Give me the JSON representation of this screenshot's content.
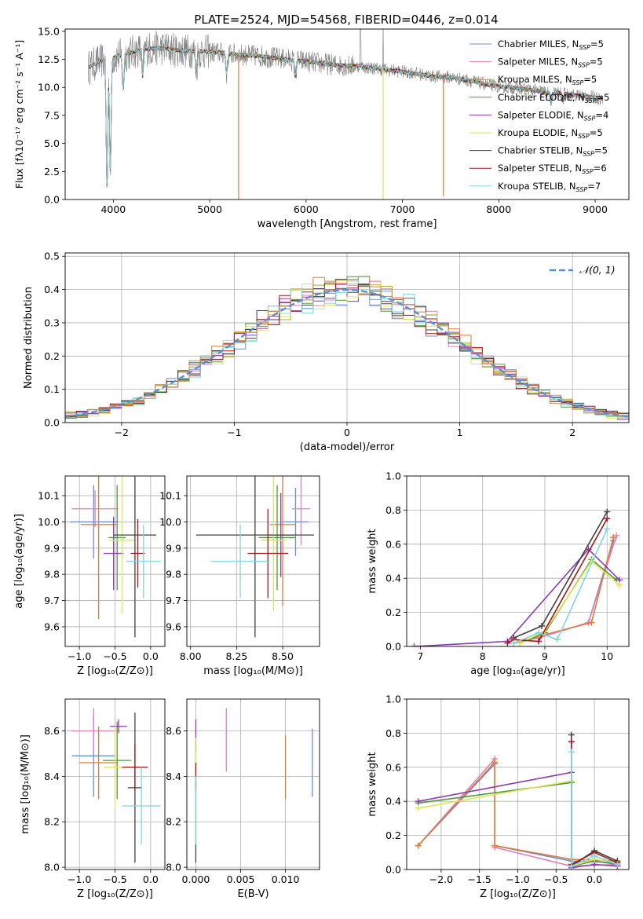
{
  "figure": {
    "title": "PLATE=2524, MJD=54568, FIBERID=0446, z=0.014"
  },
  "colors": {
    "Chabrier MILES": "#6b8fd6",
    "Salpeter MILES": "#e07fb8",
    "Kroupa MILES": "#b8a32e",
    "Chabrier ELODIE": "#4e9a3e",
    "Salpeter ELODIE": "#8e3ab0",
    "Kroupa ELODIE": "#e2e35a",
    "Chabrier STELIB": "#404040",
    "Salpeter STELIB": "#a01818",
    "Kroupa STELIB": "#7fd8dc",
    "orange": "#e07b3a",
    "data": "#808080",
    "normal": "#5b8fd0"
  },
  "chart_data": [
    {
      "id": "spectrum",
      "type": "line",
      "xlabel": "wavelength [Angstrom, rest frame]",
      "ylabel": "Flux [fλ10⁻¹⁷ erg cm⁻² s⁻¹ A⁻¹]",
      "xlim": [
        3500,
        9350
      ],
      "ylim": [
        0,
        15.2
      ],
      "xticks": [
        4000,
        5000,
        6000,
        7000,
        8000,
        9000
      ],
      "yticks": [
        0.0,
        2.5,
        5.0,
        7.5,
        10.0,
        12.5,
        15.0
      ],
      "legend": "top-right",
      "series": [
        {
          "name": "Chabrier MILES, N_SSP=5",
          "label_main": "Chabrier MILES, N",
          "label_sub": "SSP",
          "label_tail": "=5",
          "color": "#6b8fd6"
        },
        {
          "name": "Salpeter MILES, N_SSP=5",
          "label_main": "Salpeter MILES, N",
          "label_sub": "SSP",
          "label_tail": "=5",
          "color": "#e07fb8"
        },
        {
          "name": "Kroupa MILES, N_SSP=5",
          "label_main": "Kroupa MILES, N",
          "label_sub": "SSP",
          "label_tail": "=5",
          "color": "#b8a32e"
        },
        {
          "name": "Chabrier ELODIE, N_SSP=5",
          "label_main": "Chabrier ELODIE, N",
          "label_sub": "SSP",
          "label_tail": "=5",
          "color": "#4e9a3e"
        },
        {
          "name": "Salpeter ELODIE, N_SSP=4",
          "label_main": "Salpeter ELODIE, N",
          "label_sub": "SSP",
          "label_tail": "=4",
          "color": "#8e3ab0"
        },
        {
          "name": "Kroupa ELODIE, N_SSP=5",
          "label_main": "Kroupa ELODIE, N",
          "label_sub": "SSP",
          "label_tail": "=5",
          "color": "#e2e35a"
        },
        {
          "name": "Chabrier STELIB, N_SSP=5",
          "label_main": "Chabrier STELIB, N",
          "label_sub": "SSP",
          "label_tail": "=5",
          "color": "#404040"
        },
        {
          "name": "Salpeter STELIB, N_SSP=6",
          "label_main": "Salpeter STELIB, N",
          "label_sub": "SSP",
          "label_tail": "=6",
          "color": "#a01818"
        },
        {
          "name": "Kroupa STELIB, N_SSP=7",
          "label_main": "Kroupa STELIB, N",
          "label_sub": "SSP",
          "label_tail": "=7",
          "color": "#7fd8dc"
        }
      ],
      "continuum": [
        [
          3750,
          11.8
        ],
        [
          3850,
          12.3
        ],
        [
          3950,
          12.5
        ],
        [
          4050,
          12.8
        ],
        [
          4150,
          13.0
        ],
        [
          4300,
          13.4
        ],
        [
          4500,
          13.5
        ],
        [
          4700,
          13.3
        ],
        [
          4900,
          13.2
        ],
        [
          5100,
          13.1
        ],
        [
          5300,
          12.9
        ],
        [
          5500,
          12.8
        ],
        [
          5700,
          12.6
        ],
        [
          5900,
          12.4
        ],
        [
          6100,
          12.2
        ],
        [
          6300,
          12.0
        ],
        [
          6500,
          11.9
        ],
        [
          6700,
          11.7
        ],
        [
          6900,
          11.5
        ],
        [
          7100,
          11.3
        ],
        [
          7300,
          11.0
        ],
        [
          7500,
          10.9
        ],
        [
          7700,
          10.6
        ],
        [
          7900,
          10.2
        ],
        [
          8100,
          10.0
        ],
        [
          8300,
          9.8
        ],
        [
          8500,
          9.6
        ],
        [
          8700,
          9.4
        ],
        [
          8900,
          9.2
        ],
        [
          9080,
          9.0
        ]
      ],
      "absorption": [
        [
          3934,
          0.9
        ],
        [
          3969,
          2.6
        ],
        [
          4102,
          9.8
        ],
        [
          4304,
          11.0
        ],
        [
          4861,
          11.5
        ],
        [
          5175,
          11.2
        ],
        [
          5890,
          11.0
        ],
        [
          6563,
          12.0
        ],
        [
          8498,
          9.4
        ],
        [
          8542,
          8.5
        ],
        [
          8662,
          8.8
        ]
      ],
      "model_drops": [
        [
          5300,
          0.0,
          "#e07b3a"
        ],
        [
          6800,
          0.0,
          "#e2e35a"
        ],
        [
          7425,
          0.3,
          "#e07b3a"
        ]
      ]
    },
    {
      "id": "residuals",
      "type": "histogram",
      "xlabel": "(data-model)/error",
      "ylabel": "Normed distribution",
      "xlim": [
        -2.5,
        2.5
      ],
      "ylim": [
        0,
        0.51
      ],
      "xticks": [
        -2,
        -1,
        0,
        1,
        2
      ],
      "yticks": [
        0.0,
        0.1,
        0.2,
        0.3,
        0.4,
        0.5
      ],
      "legend": "top-right",
      "legend_label": "𝒩(0, 1)",
      "bin_width": 0.1
    },
    {
      "id": "age_vs_Z",
      "type": "errorbar",
      "xlabel": "Z [log₁₀(Z/Z⊙)]",
      "ylabel": "age  [log₁₀(age/yr)]",
      "xlim": [
        -1.2,
        0.2
      ],
      "ylim": [
        9.525,
        10.175
      ],
      "xticks": [
        -1.0,
        -0.5,
        0.0
      ],
      "yticks": [
        9.6,
        9.7,
        9.8,
        9.9,
        10.0,
        10.1
      ],
      "points": [
        {
          "x": -0.8,
          "y": 10.0,
          "xerr": 0.33,
          "yerr": 0.14,
          "color": "#6b8fd6"
        },
        {
          "x": -0.78,
          "y": 10.05,
          "xerr": 0.33,
          "yerr": 0.07,
          "color": "#e07fb8"
        },
        {
          "x": -0.73,
          "y": 9.99,
          "xerr": 0.25,
          "yerr": 0.36,
          "color": "#e07b3a"
        },
        {
          "x": -0.47,
          "y": 9.94,
          "xerr": 0.12,
          "yerr": 0.2,
          "color": "#4e9a3e"
        },
        {
          "x": -0.52,
          "y": 9.88,
          "xerr": 0.14,
          "yerr": 0.14,
          "color": "#8e3ab0"
        },
        {
          "x": -0.4,
          "y": 9.93,
          "xerr": 0.18,
          "yerr": 0.28,
          "color": "#e2e35a"
        },
        {
          "x": -0.22,
          "y": 9.95,
          "xerr": 0.3,
          "yerr": 0.39,
          "color": "#404040"
        },
        {
          "x": -0.18,
          "y": 9.88,
          "xerr": 0.1,
          "yerr": 0.13,
          "color": "#a01818"
        },
        {
          "x": -0.1,
          "y": 9.85,
          "xerr": 0.24,
          "yerr": 0.14,
          "color": "#7fd8dc"
        }
      ]
    },
    {
      "id": "age_vs_mass",
      "type": "errorbar",
      "xlabel": "mass [log₁₀(M/M⊙)]",
      "ylabel": "",
      "xlim": [
        7.98,
        8.7
      ],
      "ylim": [
        9.525,
        10.175
      ],
      "xticks": [
        8.0,
        8.25,
        8.5
      ],
      "yticks": [
        9.6,
        9.7,
        9.8,
        9.9,
        10.0,
        10.1
      ],
      "points": [
        {
          "x": 8.57,
          "y": 10.0,
          "xerr": 0.07,
          "yerr": 0.13,
          "color": "#6b8fd6"
        },
        {
          "x": 8.6,
          "y": 10.05,
          "xerr": 0.05,
          "yerr": 0.14,
          "color": "#e07fb8"
        },
        {
          "x": 8.5,
          "y": 9.99,
          "xerr": 0.07,
          "yerr": 0.31,
          "color": "#e07b3a"
        },
        {
          "x": 8.47,
          "y": 9.94,
          "xerr": 0.1,
          "yerr": 0.2,
          "color": "#4e9a3e"
        },
        {
          "x": 8.49,
          "y": 9.95,
          "xerr": 0.07,
          "yerr": 0.16,
          "color": "#8e3ab0"
        },
        {
          "x": 8.45,
          "y": 9.93,
          "xerr": 0.07,
          "yerr": 0.27,
          "color": "#e2e35a"
        },
        {
          "x": 8.35,
          "y": 9.95,
          "xerr": 0.32,
          "yerr": 0.39,
          "color": "#404040"
        },
        {
          "x": 8.42,
          "y": 9.88,
          "xerr": 0.11,
          "yerr": 0.17,
          "color": "#a01818"
        },
        {
          "x": 8.27,
          "y": 9.85,
          "xerr": 0.16,
          "yerr": 0.14,
          "color": "#7fd8dc"
        }
      ]
    },
    {
      "id": "weight_vs_age",
      "type": "line",
      "xlabel": "age  [log₁₀(age/yr)]",
      "ylabel": "mass weight",
      "xlim": [
        6.78,
        10.35
      ],
      "ylim": [
        0,
        1.0
      ],
      "xticks": [
        7,
        8,
        9,
        10
      ],
      "yticks": [
        0.0,
        0.2,
        0.4,
        0.6,
        0.8,
        1.0
      ],
      "series": [
        {
          "color": "#6b8fd6",
          "points": [
            [
              8.5,
              0.02
            ],
            [
              8.9,
              0.05
            ],
            [
              9.7,
              0.14
            ],
            [
              10.1,
              0.62
            ]
          ]
        },
        {
          "color": "#e07fb8",
          "points": [
            [
              8.5,
              0.02
            ],
            [
              8.9,
              0.05
            ],
            [
              9.7,
              0.14
            ],
            [
              10.15,
              0.65
            ]
          ]
        },
        {
          "color": "#e07b3a",
          "points": [
            [
              8.5,
              0.02
            ],
            [
              8.9,
              0.06
            ],
            [
              9.75,
              0.14
            ],
            [
              10.1,
              0.64
            ]
          ]
        },
        {
          "color": "#4e9a3e",
          "points": [
            [
              8.6,
              0.02
            ],
            [
              9.0,
              0.08
            ],
            [
              9.75,
              0.51
            ],
            [
              10.15,
              0.39
            ]
          ]
        },
        {
          "color": "#8e3ab0",
          "points": [
            [
              6.9,
              0.0
            ],
            [
              8.4,
              0.03
            ],
            [
              9.7,
              0.57
            ],
            [
              10.2,
              0.39
            ]
          ]
        },
        {
          "color": "#e2e35a",
          "points": [
            [
              8.6,
              0.02
            ],
            [
              9.0,
              0.09
            ],
            [
              9.75,
              0.5
            ],
            [
              10.2,
              0.36
            ]
          ]
        },
        {
          "color": "#404040",
          "points": [
            [
              8.5,
              0.05
            ],
            [
              8.95,
              0.12
            ],
            [
              10.0,
              0.79
            ]
          ]
        },
        {
          "color": "#a01818",
          "points": [
            [
              8.4,
              0.02
            ],
            [
              8.5,
              0.04
            ],
            [
              8.9,
              0.03
            ],
            [
              10.0,
              0.75
            ]
          ]
        },
        {
          "color": "#7fd8dc",
          "points": [
            [
              8.5,
              0.02
            ],
            [
              8.9,
              0.08
            ],
            [
              9.2,
              0.04
            ],
            [
              10.0,
              0.69
            ]
          ]
        }
      ]
    },
    {
      "id": "mass_vs_Z",
      "type": "errorbar",
      "xlabel": "Z [log₁₀(Z/Z⊙)]",
      "ylabel": "mass [log₁₀(M/M⊙)]",
      "xlim": [
        -1.2,
        0.2
      ],
      "ylim": [
        7.99,
        8.74
      ],
      "xticks": [
        -1.0,
        -0.5,
        0.0
      ],
      "yticks": [
        8.0,
        8.2,
        8.4,
        8.6
      ],
      "points": [
        {
          "x": -0.8,
          "y": 8.49,
          "xerr": 0.3,
          "yerr": 0.18,
          "color": "#6b8fd6"
        },
        {
          "x": -0.8,
          "y": 8.6,
          "xerr": 0.32,
          "yerr": 0.1,
          "color": "#e07fb8"
        },
        {
          "x": -0.73,
          "y": 8.46,
          "xerr": 0.27,
          "yerr": 0.16,
          "color": "#e07b3a"
        },
        {
          "x": -0.47,
          "y": 8.47,
          "xerr": 0.2,
          "yerr": 0.17,
          "color": "#4e9a3e"
        },
        {
          "x": -0.45,
          "y": 8.62,
          "xerr": 0.12,
          "yerr": 0.03,
          "color": "#8e3ab0"
        },
        {
          "x": -0.5,
          "y": 8.44,
          "xerr": 0.15,
          "yerr": 0.18,
          "color": "#e2e35a"
        },
        {
          "x": -0.22,
          "y": 8.35,
          "xerr": 0.1,
          "yerr": 0.33,
          "color": "#404040"
        },
        {
          "x": -0.22,
          "y": 8.44,
          "xerr": 0.18,
          "yerr": 0.1,
          "color": "#a01818"
        },
        {
          "x": -0.13,
          "y": 8.27,
          "xerr": 0.27,
          "yerr": 0.17,
          "color": "#7fd8dc"
        }
      ]
    },
    {
      "id": "mass_vs_ebv",
      "type": "errorbar",
      "xlabel": "E(B-V)",
      "ylabel": "",
      "xlim": [
        -0.001,
        0.0138
      ],
      "ylim": [
        7.99,
        8.74
      ],
      "xticks": [
        0.0,
        0.005,
        0.01
      ],
      "yticks": [
        8.0,
        8.2,
        8.4,
        8.6
      ],
      "points": [
        {
          "x": 0.013,
          "y": 8.46,
          "yerr": 0.15,
          "color": "#6b8fd6"
        },
        {
          "x": 0.0034,
          "y": 8.56,
          "yerr": 0.14,
          "color": "#e07fb8"
        },
        {
          "x": 0.01,
          "y": 8.44,
          "yerr": 0.14,
          "color": "#e07b3a"
        },
        {
          "x": 0.0,
          "y": 8.47,
          "yerr": 0.1,
          "color": "#4e9a3e"
        },
        {
          "x": 0.0,
          "y": 8.58,
          "yerr": 0.07,
          "color": "#8e3ab0"
        },
        {
          "x": 0.0,
          "y": 8.45,
          "yerr": 0.12,
          "color": "#e2e35a"
        },
        {
          "x": 0.0,
          "y": 8.2,
          "yerr": 0.18,
          "color": "#404040"
        },
        {
          "x": 0.0,
          "y": 8.4,
          "yerr": 0.06,
          "color": "#a01818"
        },
        {
          "x": 0.0,
          "y": 8.25,
          "yerr": 0.15,
          "color": "#7fd8dc"
        }
      ]
    },
    {
      "id": "weight_vs_Z",
      "type": "line",
      "xlabel": "Z [log₁₀(Z/Z⊙)]",
      "ylabel": "mass weight",
      "xlim": [
        -2.45,
        0.45
      ],
      "ylim": [
        0,
        1.0
      ],
      "xticks": [
        -2.0,
        -1.5,
        -1.0,
        -0.5,
        0.0
      ],
      "yticks": [
        0.0,
        0.2,
        0.4,
        0.6,
        0.8,
        1.0
      ],
      "series": [
        {
          "color": "#6b8fd6",
          "points": [
            [
              -2.3,
              0.14
            ],
            [
              -1.3,
              0.62
            ],
            [
              -1.3,
              0.14
            ],
            [
              -0.3,
              0.05
            ],
            [
              0.3,
              0.04
            ]
          ]
        },
        {
          "color": "#e07fb8",
          "points": [
            [
              -2.3,
              0.14
            ],
            [
              -1.3,
              0.65
            ],
            [
              -1.3,
              0.13
            ],
            [
              -0.3,
              0.02
            ],
            [
              0.3,
              0.03
            ]
          ]
        },
        {
          "color": "#e07b3a",
          "points": [
            [
              -2.3,
              0.14
            ],
            [
              -1.3,
              0.63
            ],
            [
              -1.3,
              0.14
            ],
            [
              -0.3,
              0.06
            ],
            [
              0.3,
              0.05
            ]
          ]
        },
        {
          "color": "#4e9a3e",
          "points": [
            [
              -2.3,
              0.39
            ],
            [
              -0.3,
              0.51
            ],
            [
              -0.3,
              0.02
            ],
            [
              0.0,
              0.05
            ],
            [
              0.3,
              0.03
            ]
          ]
        },
        {
          "color": "#8e3ab0",
          "points": [
            [
              -2.3,
              0.4
            ],
            [
              -0.3,
              0.57
            ],
            [
              -0.3,
              0.01
            ],
            [
              0.0,
              0.03
            ],
            [
              0.3,
              0.02
            ]
          ]
        },
        {
          "color": "#e2e35a",
          "points": [
            [
              -2.3,
              0.36
            ],
            [
              -0.3,
              0.52
            ],
            [
              -0.3,
              0.02
            ],
            [
              0.0,
              0.06
            ],
            [
              0.3,
              0.04
            ]
          ]
        },
        {
          "color": "#404040",
          "points": [
            [
              -0.3,
              0.79
            ],
            [
              -0.3,
              0.02
            ],
            [
              0.0,
              0.11
            ],
            [
              0.3,
              0.05
            ]
          ]
        },
        {
          "color": "#a01818",
          "points": [
            [
              -0.3,
              0.75
            ],
            [
              -0.3,
              0.03
            ],
            [
              0.0,
              0.1
            ],
            [
              0.3,
              0.04
            ]
          ]
        },
        {
          "color": "#7fd8dc",
          "points": [
            [
              -0.3,
              0.69
            ],
            [
              -0.3,
              0.02
            ],
            [
              0.0,
              0.08
            ],
            [
              0.3,
              0.03
            ]
          ]
        }
      ]
    }
  ]
}
